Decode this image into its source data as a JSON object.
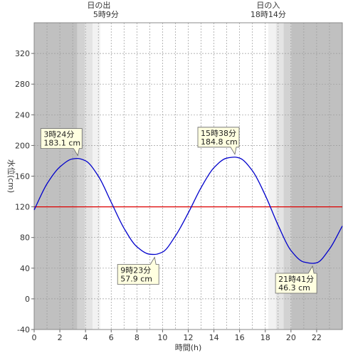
{
  "chart_data": {
    "type": "line",
    "xlabel": "時間(h)",
    "ylabel": "水位(cm)",
    "xlim": [
      0,
      24
    ],
    "ylim": [
      -40,
      360
    ],
    "x_ticks": [
      "0",
      "2",
      "4",
      "6",
      "8",
      "10",
      "12",
      "14",
      "16",
      "18",
      "20",
      "22"
    ],
    "y_ticks": [
      "-40",
      "0",
      "40",
      "80",
      "120",
      "160",
      "200",
      "240",
      "280",
      "320"
    ],
    "grid": true,
    "series": [
      {
        "color": "#0000cc",
        "x": [
          0,
          1,
          2,
          3,
          3.4,
          4,
          5,
          6,
          7,
          8,
          9,
          9.38,
          10,
          11,
          12,
          13,
          14,
          15,
          15.63,
          16,
          17,
          18,
          19,
          20,
          21,
          21.68,
          22,
          23,
          24
        ],
        "y": [
          116,
          150,
          172,
          182.5,
          183.1,
          180,
          160,
          126,
          92,
          68,
          58.2,
          57.9,
          61,
          82,
          112,
          145,
          171,
          183.5,
          184.8,
          183.5,
          167,
          135,
          96,
          63,
          48,
          46.3,
          47,
          65,
          95
        ]
      }
    ],
    "reference_line": {
      "y": 120,
      "color": "#dd0000"
    },
    "daylight": {
      "sunrise_hour": 5.15,
      "sunset_hour": 18.23,
      "night_color": "#c0c0c0",
      "twilight_colors": [
        "#d2d2d2",
        "#e4e4e4",
        "#f2f2f2"
      ]
    },
    "sunrise": {
      "label": "日の出",
      "time": "5時9分"
    },
    "sunset": {
      "label": "日の入",
      "time": "18時14分"
    },
    "annotations": [
      {
        "x": 3.4,
        "y": 183.1,
        "time": "3時24分",
        "value": "183.1 cm",
        "position": "above"
      },
      {
        "x": 15.63,
        "y": 184.8,
        "time": "15時38分",
        "value": "184.8 cm",
        "position": "above"
      },
      {
        "x": 9.38,
        "y": 57.9,
        "time": "9時23分",
        "value": "57.9 cm",
        "position": "below"
      },
      {
        "x": 21.68,
        "y": 46.3,
        "time": "21時41分",
        "value": "46.3 cm",
        "position": "below"
      }
    ]
  }
}
